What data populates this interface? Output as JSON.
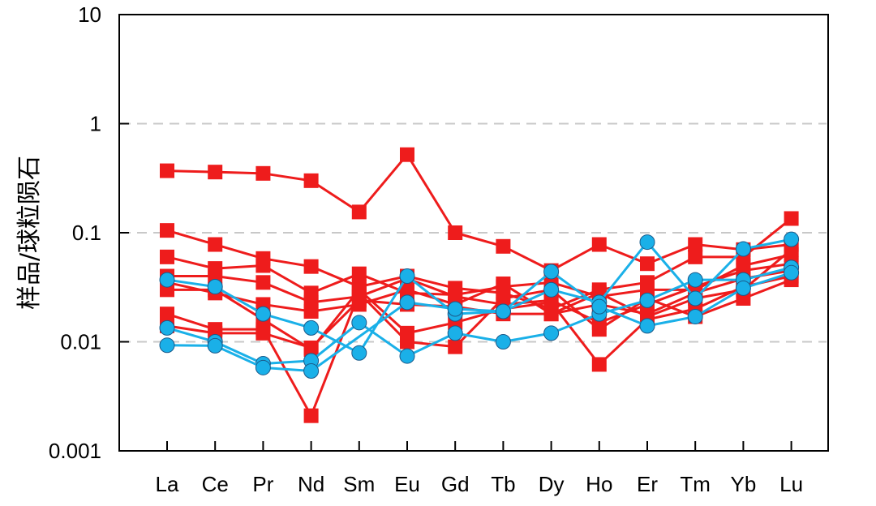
{
  "chart_data": {
    "type": "line",
    "title": "",
    "xlabel": "",
    "ylabel": "样品/球粒陨石",
    "y_scale": "log",
    "ylim": [
      0.001,
      10
    ],
    "yticks": [
      0.001,
      0.01,
      0.1,
      1,
      10
    ],
    "ytick_labels": [
      "0.001",
      "0.01",
      "0.1",
      "1",
      "10"
    ],
    "grid": "horizontal-dashed",
    "categories": [
      "La",
      "Ce",
      "Pr",
      "Nd",
      "Sm",
      "Eu",
      "Gd",
      "Tb",
      "Dy",
      "Ho",
      "Er",
      "Tm",
      "Yb",
      "Lu"
    ],
    "series_colors": {
      "red": "#ee1c1c",
      "blue": "#1ab0e8"
    },
    "series": [
      {
        "group": "red",
        "marker": "square",
        "values": [
          0.37,
          0.36,
          0.35,
          0.3,
          0.155,
          0.52,
          0.1,
          0.075,
          0.045,
          0.078,
          0.052,
          0.078,
          0.07,
          0.078
        ]
      },
      {
        "group": "red",
        "marker": "square",
        "values": [
          0.105,
          0.078,
          0.058,
          0.049,
          0.032,
          0.04,
          0.031,
          0.028,
          0.02,
          0.03,
          0.035,
          0.06,
          0.06,
          0.135
        ]
      },
      {
        "group": "red",
        "marker": "square",
        "values": [
          0.06,
          0.047,
          0.05,
          0.028,
          0.042,
          0.028,
          0.027,
          0.032,
          0.035,
          0.026,
          0.03,
          0.03,
          0.05,
          0.063
        ]
      },
      {
        "group": "red",
        "marker": "square",
        "values": [
          0.04,
          0.04,
          0.035,
          0.023,
          0.026,
          0.038,
          0.026,
          0.022,
          0.024,
          0.015,
          0.022,
          0.032,
          0.045,
          0.052
        ]
      },
      {
        "group": "red",
        "marker": "square",
        "values": [
          0.035,
          0.028,
          0.022,
          0.019,
          0.022,
          0.03,
          0.022,
          0.034,
          0.018,
          0.022,
          0.018,
          0.028,
          0.038,
          0.045
        ]
      },
      {
        "group": "red",
        "marker": "square",
        "values": [
          0.03,
          0.03,
          0.016,
          0.0085,
          0.03,
          0.012,
          0.015,
          0.02,
          0.023,
          0.0062,
          0.016,
          0.02,
          0.032,
          0.04
        ]
      },
      {
        "group": "red",
        "marker": "square",
        "values": [
          0.018,
          0.013,
          0.013,
          0.0021,
          0.028,
          0.01,
          0.009,
          0.025,
          0.03,
          0.013,
          0.025,
          0.017,
          0.025,
          0.037
        ]
      },
      {
        "group": "red",
        "marker": "square",
        "values": [
          0.014,
          0.012,
          0.012,
          0.0088,
          0.024,
          0.022,
          0.021,
          0.018,
          0.018,
          0.028,
          0.017,
          0.025,
          0.03,
          0.07
        ]
      },
      {
        "group": "blue",
        "marker": "circle",
        "values": [
          0.037,
          0.032,
          0.018,
          0.0134,
          0.0079,
          0.04,
          0.018,
          0.019,
          0.03,
          0.023,
          0.082,
          0.025,
          0.071,
          0.087
        ]
      },
      {
        "group": "blue",
        "marker": "circle",
        "values": [
          0.0134,
          0.01,
          0.0063,
          0.0067,
          0.015,
          0.0074,
          0.012,
          0.01,
          0.012,
          0.018,
          0.024,
          0.037,
          0.037,
          0.048
        ]
      },
      {
        "group": "blue",
        "marker": "circle",
        "values": [
          0.0093,
          0.0092,
          0.0058,
          0.0054,
          null,
          0.023,
          0.02,
          0.019,
          0.044,
          0.021,
          0.014,
          0.017,
          0.031,
          0.043
        ]
      }
    ]
  }
}
